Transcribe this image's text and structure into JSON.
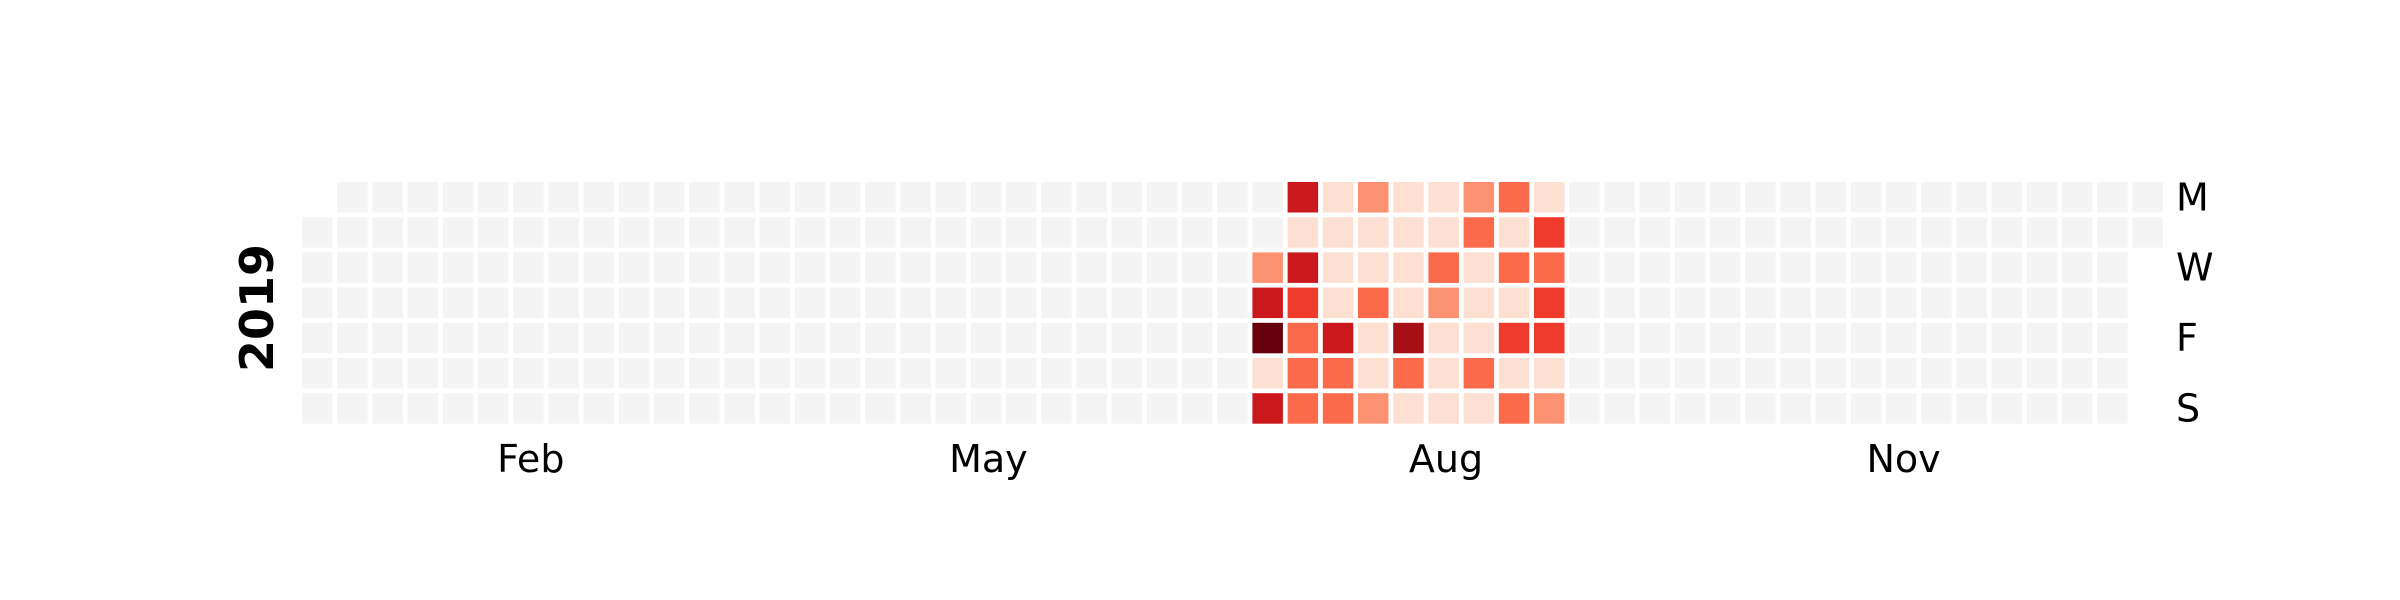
{
  "chart_data": {
    "type": "heatmap",
    "year": "2019",
    "colormap": "Reds",
    "empty_color": "#f4f4f4",
    "ylabel": "2019",
    "x_tick_labels": [
      {
        "label": "Feb",
        "week": 6.5
      },
      {
        "label": "May",
        "week": 19.5
      },
      {
        "label": "Aug",
        "week": 32.5
      },
      {
        "label": "Nov",
        "week": 45.5
      }
    ],
    "y_tick_labels": [
      {
        "label": "M",
        "day": 0
      },
      {
        "label": "W",
        "day": 2
      },
      {
        "label": "F",
        "day": 4
      },
      {
        "label": "S",
        "day": 6
      }
    ],
    "start_weekday": 1,
    "num_days": 365,
    "max_value": 9,
    "data_weeks": [
      {
        "week": 27,
        "values": [
          null,
          null,
          3,
          7,
          9,
          1,
          7
        ]
      },
      {
        "week": 28,
        "values": [
          7,
          1,
          7,
          6,
          5,
          5,
          4
        ]
      },
      {
        "week": 29,
        "values": [
          1,
          1,
          1,
          1,
          7,
          4,
          5
        ]
      },
      {
        "week": 30,
        "values": [
          3,
          1,
          1,
          5,
          1,
          1,
          3
        ]
      },
      {
        "week": 31,
        "values": [
          1,
          1,
          1,
          1,
          8,
          5,
          1
        ]
      },
      {
        "week": 32,
        "values": [
          1,
          1,
          5,
          3,
          1,
          1,
          1
        ]
      },
      {
        "week": 33,
        "values": [
          3,
          4,
          1,
          1,
          1,
          5,
          1
        ]
      },
      {
        "week": 34,
        "values": [
          5,
          1,
          5,
          1,
          6,
          1,
          4
        ]
      },
      {
        "week": 35,
        "values": [
          1,
          6,
          5,
          6,
          6,
          1,
          3
        ]
      }
    ]
  }
}
